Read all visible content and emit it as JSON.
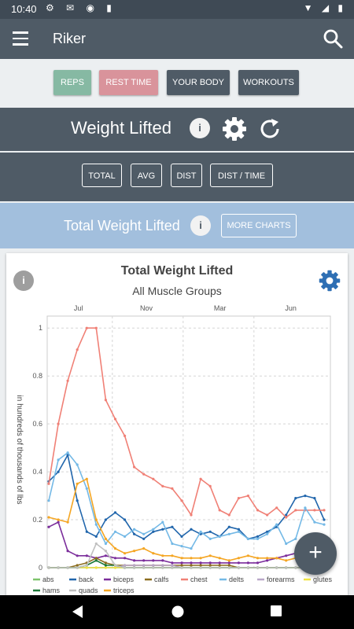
{
  "status_bar": {
    "time": "10:40"
  },
  "app_bar": {
    "title": "Riker"
  },
  "nav_buttons": [
    {
      "label": "REPS",
      "color": "#86b9a3"
    },
    {
      "label": "REST TIME",
      "color": "#d9939b"
    },
    {
      "label": "YOUR BODY",
      "color": "#4f5b66"
    },
    {
      "label": "WORKOUTS",
      "color": "#4f5b66"
    }
  ],
  "section": {
    "title": "Weight Lifted",
    "info": "i"
  },
  "filters": [
    "TOTAL",
    "AVG",
    "DIST",
    "DIST / TIME"
  ],
  "chart_header": {
    "title": "Total Weight Lifted",
    "info": "i",
    "more_label": "MORE CHARTS"
  },
  "chart_data": {
    "type": "line",
    "title": "Total Weight Lifted",
    "subtitle": "All Muscle Groups",
    "ylabel": "in hundreds of thousands of lbs",
    "ylim": [
      0,
      1.05
    ],
    "yticks": [
      "0",
      "0.2",
      "0.4",
      "0.6",
      "0.8",
      "1"
    ],
    "xticks": [
      "Jul",
      "Nov",
      "Mar",
      "Jun"
    ],
    "x": [
      0,
      1,
      2,
      3,
      4,
      5,
      6,
      7,
      8,
      9,
      10,
      11,
      12,
      13,
      14,
      15,
      16,
      17,
      18,
      19,
      20,
      21,
      22,
      23,
      24,
      25,
      26,
      27,
      28,
      29
    ],
    "series": [
      {
        "name": "abs",
        "color": "#7dc36b",
        "values": [
          0,
          0,
          0,
          0,
          0,
          0,
          0,
          0,
          0,
          0,
          0,
          0,
          0,
          0,
          0,
          0,
          0,
          0,
          0,
          0,
          0,
          0,
          0,
          0,
          0,
          0,
          0,
          0,
          0.01,
          0.01
        ]
      },
      {
        "name": "back",
        "color": "#2166ac",
        "values": [
          0.36,
          0.4,
          0.47,
          0.28,
          0.15,
          0.13,
          0.2,
          0.23,
          0.2,
          0.14,
          0.12,
          0.15,
          0.16,
          0.17,
          0.13,
          0.16,
          0.14,
          0.15,
          0.13,
          0.17,
          0.16,
          0.12,
          0.13,
          0.15,
          0.17,
          0.22,
          0.29,
          0.3,
          0.29,
          0.2
        ]
      },
      {
        "name": "biceps",
        "color": "#7b2d9b",
        "values": [
          0.17,
          0.19,
          0.07,
          0.05,
          0.05,
          0.04,
          0.05,
          0.04,
          0.04,
          0.03,
          0.03,
          0.03,
          0.03,
          0.02,
          0.02,
          0.02,
          0.02,
          0.02,
          0.02,
          0.02,
          0.02,
          0.02,
          0.02,
          0.03,
          0.04,
          0.05,
          0.06,
          0.08,
          0.07,
          0.06
        ]
      },
      {
        "name": "calfs",
        "color": "#8c6d1f",
        "values": [
          0,
          0,
          0,
          0.01,
          0.02,
          0.04,
          0.02,
          0.01,
          0.01,
          0.01,
          0.01,
          0.01,
          0.01,
          0.01,
          0.01,
          0.01,
          0.01,
          0.01,
          0.01,
          0.01,
          0,
          0,
          0,
          0,
          0,
          0,
          0,
          0,
          0,
          0
        ]
      },
      {
        "name": "chest",
        "color": "#f08076",
        "values": [
          0.35,
          0.6,
          0.78,
          0.91,
          1.0,
          1.0,
          0.7,
          0.62,
          0.55,
          0.42,
          0.39,
          0.37,
          0.34,
          0.33,
          0.28,
          0.22,
          0.37,
          0.34,
          0.24,
          0.22,
          0.29,
          0.3,
          0.24,
          0.22,
          0.25,
          0.21,
          0.24,
          0.24,
          0.24,
          0.24
        ]
      },
      {
        "name": "delts",
        "color": "#74b9e6",
        "values": [
          0.28,
          0.45,
          0.48,
          0.43,
          0.33,
          0.18,
          0.1,
          0.15,
          0.13,
          0.16,
          0.14,
          0.16,
          0.19,
          0.1,
          0.09,
          0.08,
          0.15,
          0.12,
          0.13,
          0.14,
          0.15,
          0.12,
          0.12,
          0.14,
          0.18,
          0.1,
          0.12,
          0.25,
          0.19,
          0.18
        ]
      },
      {
        "name": "forearms",
        "color": "#b9a7c9",
        "values": [
          0,
          0,
          0,
          0,
          0,
          0,
          0,
          0,
          0.01,
          0.01,
          0.01,
          0.01,
          0.01,
          0.01,
          0,
          0,
          0,
          0,
          0,
          0,
          0,
          0,
          0,
          0,
          0,
          0,
          0,
          0,
          0,
          0
        ]
      },
      {
        "name": "glutes",
        "color": "#f0e442",
        "values": [
          0,
          0,
          0,
          0,
          0,
          0,
          0,
          0,
          0,
          0,
          0,
          0,
          0,
          0,
          0,
          0,
          0,
          0,
          0,
          0,
          0,
          0,
          0,
          0,
          0,
          0,
          0,
          0,
          0,
          0
        ]
      },
      {
        "name": "hams",
        "color": "#1b7837",
        "values": [
          0,
          0,
          0,
          0,
          0.01,
          0.03,
          0.01,
          0.01,
          0,
          0,
          0,
          0,
          0,
          0,
          0,
          0,
          0,
          0,
          0,
          0,
          0,
          0,
          0,
          0,
          0,
          0,
          0,
          0,
          0,
          0
        ]
      },
      {
        "name": "quads",
        "color": "#c0c0c0",
        "values": [
          0,
          0,
          0,
          0,
          0.01,
          0.1,
          0.07,
          0.01,
          0,
          0,
          0,
          0,
          0,
          0,
          0,
          0,
          0,
          0,
          0,
          0,
          0,
          0,
          0,
          0,
          0,
          0,
          0,
          0,
          0,
          0
        ]
      },
      {
        "name": "triceps",
        "color": "#f5a623",
        "values": [
          0.21,
          0.2,
          0.19,
          0.35,
          0.37,
          0.2,
          0.12,
          0.08,
          0.06,
          0.07,
          0.08,
          0.06,
          0.05,
          0.05,
          0.04,
          0.04,
          0.04,
          0.05,
          0.04,
          0.03,
          0.04,
          0.05,
          0.04,
          0.04,
          0.04,
          0.03,
          0.04,
          0.04,
          0.03,
          0.03
        ]
      }
    ]
  }
}
